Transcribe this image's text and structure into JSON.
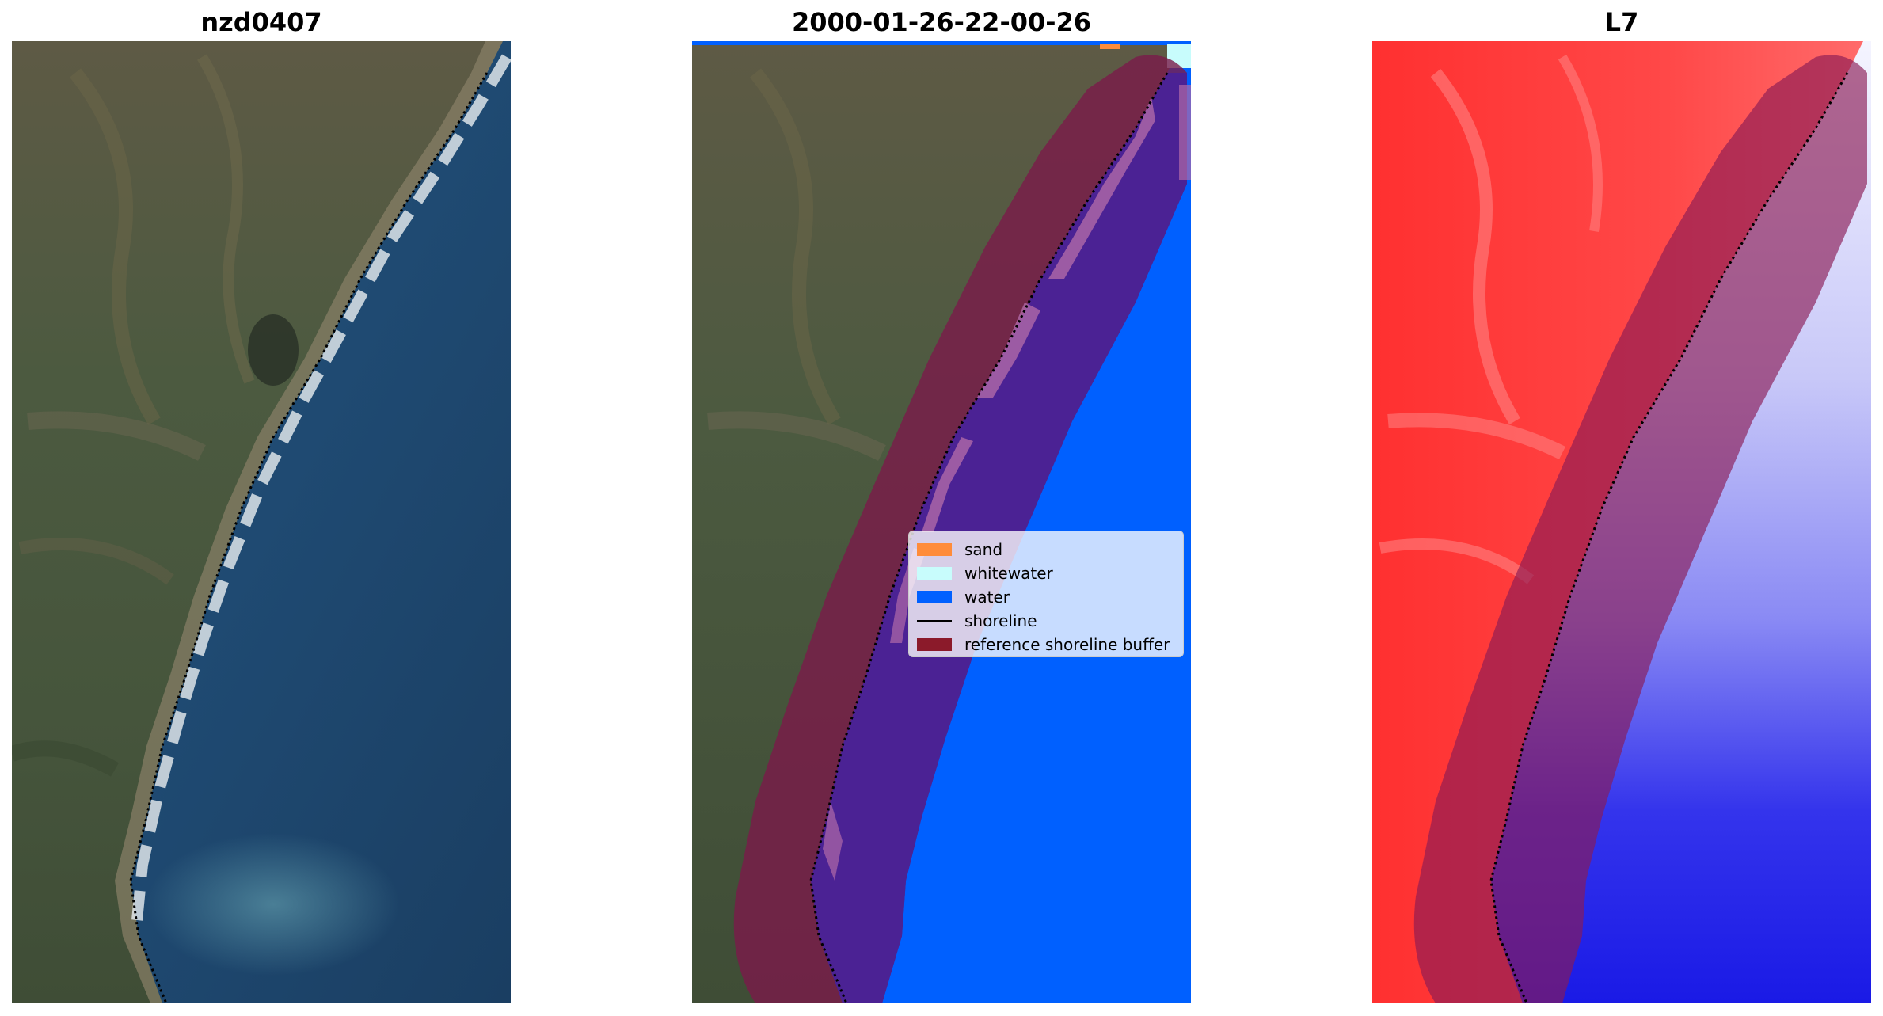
{
  "panels": [
    {
      "title": "nzd0407"
    },
    {
      "title": "2000-01-26-22-00-26"
    },
    {
      "title": "L7"
    }
  ],
  "legend": {
    "placement": "center-right of middle panel",
    "items": [
      {
        "label": "sand",
        "kind": "patch",
        "color": "#ff8c3a"
      },
      {
        "label": "whitewater",
        "kind": "patch",
        "color": "#c8fcfc"
      },
      {
        "label": "water",
        "kind": "patch",
        "color": "#0060ff"
      },
      {
        "label": "shoreline",
        "kind": "line",
        "color": "#000000"
      },
      {
        "label": "reference shoreline buffer",
        "kind": "patch",
        "color": "#8b1a2a"
      }
    ]
  },
  "colors": {
    "land": "#4d5a3e",
    "ocean": "#1f4a72",
    "water_class": "#0060ff",
    "buffer": "#7a1a4a",
    "index_land": "#ff2020",
    "index_water": "#2020f0"
  }
}
